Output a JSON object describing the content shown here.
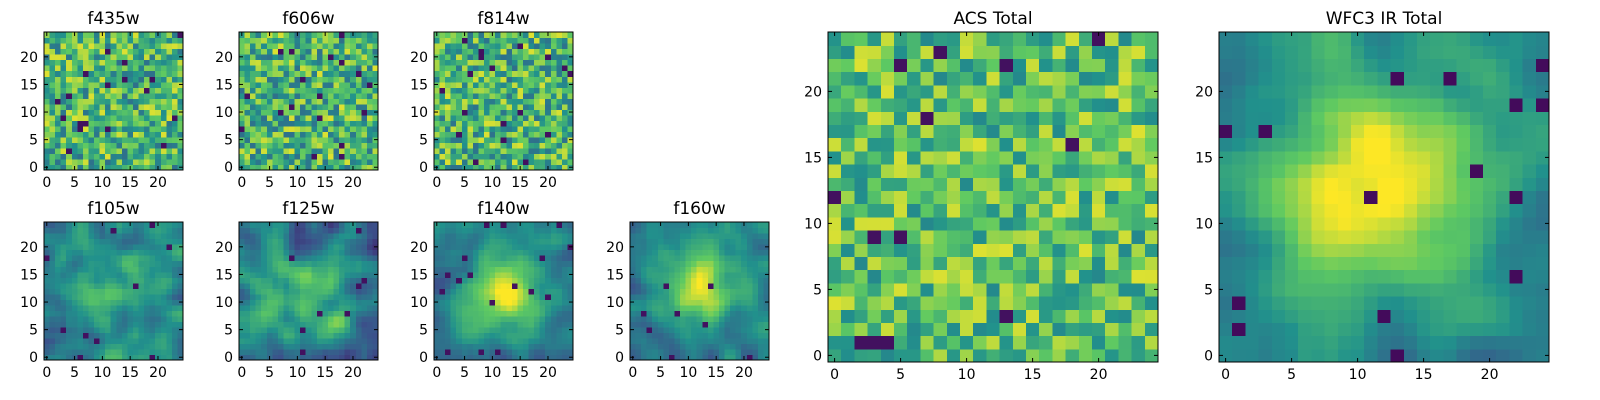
{
  "colormap": [
    "#440154",
    "#3b528b",
    "#21918c",
    "#5ec962",
    "#fde725"
  ],
  "chart_data": [
    {
      "type": "heatmap",
      "title": "f435w",
      "grid": [
        25,
        25
      ],
      "xlim": [
        0,
        24
      ],
      "ylim": [
        0,
        24
      ],
      "xticks": [
        0,
        5,
        10,
        15,
        20
      ],
      "yticks": [
        0,
        5,
        10,
        15,
        20
      ],
      "pattern": "noise",
      "peak": [
        12,
        12
      ],
      "seed": 11
    },
    {
      "type": "heatmap",
      "title": "f606w",
      "grid": [
        25,
        25
      ],
      "xlim": [
        0,
        24
      ],
      "ylim": [
        0,
        24
      ],
      "xticks": [
        0,
        5,
        10,
        15,
        20
      ],
      "yticks": [
        0,
        5,
        10,
        15,
        20
      ],
      "pattern": "noise",
      "peak": [
        12,
        12
      ],
      "seed": 23
    },
    {
      "type": "heatmap",
      "title": "f814w",
      "grid": [
        25,
        25
      ],
      "xlim": [
        0,
        24
      ],
      "ylim": [
        0,
        24
      ],
      "xticks": [
        0,
        5,
        10,
        15,
        20
      ],
      "yticks": [
        0,
        5,
        10,
        15,
        20
      ],
      "pattern": "noise",
      "peak": [
        12,
        12
      ],
      "seed": 37
    },
    {
      "type": "heatmap",
      "title": "f105w",
      "grid": [
        25,
        25
      ],
      "xlim": [
        0,
        24
      ],
      "ylim": [
        0,
        24
      ],
      "xticks": [
        0,
        5,
        10,
        15,
        20
      ],
      "yticks": [
        0,
        5,
        10,
        15,
        20
      ],
      "pattern": "smooth",
      "peak": [
        12,
        12
      ],
      "seed": 41
    },
    {
      "type": "heatmap",
      "title": "f125w",
      "grid": [
        25,
        25
      ],
      "xlim": [
        0,
        24
      ],
      "ylim": [
        0,
        24
      ],
      "xticks": [
        0,
        5,
        10,
        15,
        20
      ],
      "yticks": [
        0,
        5,
        10,
        15,
        20
      ],
      "pattern": "smooth",
      "peak": [
        13,
        11
      ],
      "seed": 53
    },
    {
      "type": "heatmap",
      "title": "f140w",
      "grid": [
        25,
        25
      ],
      "xlim": [
        0,
        24
      ],
      "ylim": [
        0,
        24
      ],
      "xticks": [
        0,
        5,
        10,
        15,
        20
      ],
      "yticks": [
        0,
        5,
        10,
        15,
        20
      ],
      "pattern": "blob",
      "peak": [
        12,
        12
      ],
      "seed": 67
    },
    {
      "type": "heatmap",
      "title": "f160w",
      "grid": [
        25,
        25
      ],
      "xlim": [
        0,
        24
      ],
      "ylim": [
        0,
        24
      ],
      "xticks": [
        0,
        5,
        10,
        15,
        20
      ],
      "yticks": [
        0,
        5,
        10,
        15,
        20
      ],
      "pattern": "blob",
      "peak": [
        12,
        13
      ],
      "seed": 79
    },
    {
      "type": "heatmap",
      "title": "ACS Total",
      "grid": [
        25,
        25
      ],
      "xlim": [
        0,
        24
      ],
      "ylim": [
        0,
        24
      ],
      "xticks": [
        0,
        5,
        10,
        15,
        20
      ],
      "yticks": [
        0,
        5,
        10,
        15,
        20
      ],
      "pattern": "noise-high",
      "peak": [
        12,
        12
      ],
      "seed": 97
    },
    {
      "type": "heatmap",
      "title": "WFC3 IR Total",
      "grid": [
        25,
        25
      ],
      "xlim": [
        0,
        24
      ],
      "ylim": [
        0,
        24
      ],
      "xticks": [
        0,
        5,
        10,
        15,
        20
      ],
      "yticks": [
        0,
        5,
        10,
        15,
        20
      ],
      "pattern": "blob-strong",
      "peak": [
        12,
        13
      ],
      "seed": 101
    }
  ]
}
